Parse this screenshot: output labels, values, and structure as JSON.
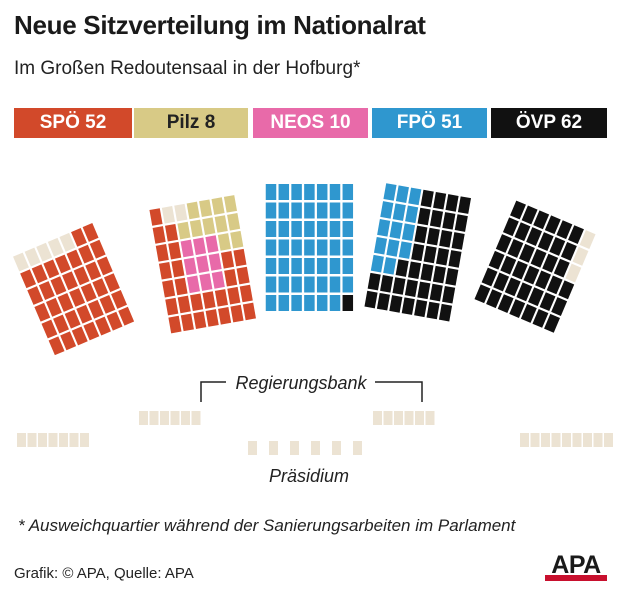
{
  "title": "Neue Sitzverteilung im Nationalrat",
  "subtitle": "Im Großen Redoutensaal in der Hofburg*",
  "colors": {
    "SPÖ": "#d2492a",
    "Pilz": "#d8ca86",
    "NEOS": "#e86aa9",
    "FPÖ": "#2f97cf",
    "ÖVP": "#111111",
    "empty": "#ece3d3"
  },
  "legend": [
    {
      "label": "SPÖ 52",
      "party": "SPÖ",
      "seats": 52,
      "text_color": "#ffffff"
    },
    {
      "label": "Pilz 8",
      "party": "Pilz",
      "seats": 8,
      "text_color": "#222222"
    },
    {
      "label": "NEOS 10",
      "party": "NEOS",
      "seats": 10,
      "text_color": "#ffffff"
    },
    {
      "label": "FPÖ 51",
      "party": "FPÖ",
      "seats": 51,
      "text_color": "#ffffff"
    },
    {
      "label": "ÖVP 62",
      "party": "ÖVP",
      "seats": 62,
      "text_color": "#ffffff"
    }
  ],
  "labels": {
    "regierungsbank": "Regierungsbank",
    "praesidium": "Präsidium"
  },
  "footnote": "* Ausweichquartier während der Sanierungsarbeiten im Parlament",
  "credit": "Grafik: © APA, Quelle: APA",
  "logo": "APA"
}
